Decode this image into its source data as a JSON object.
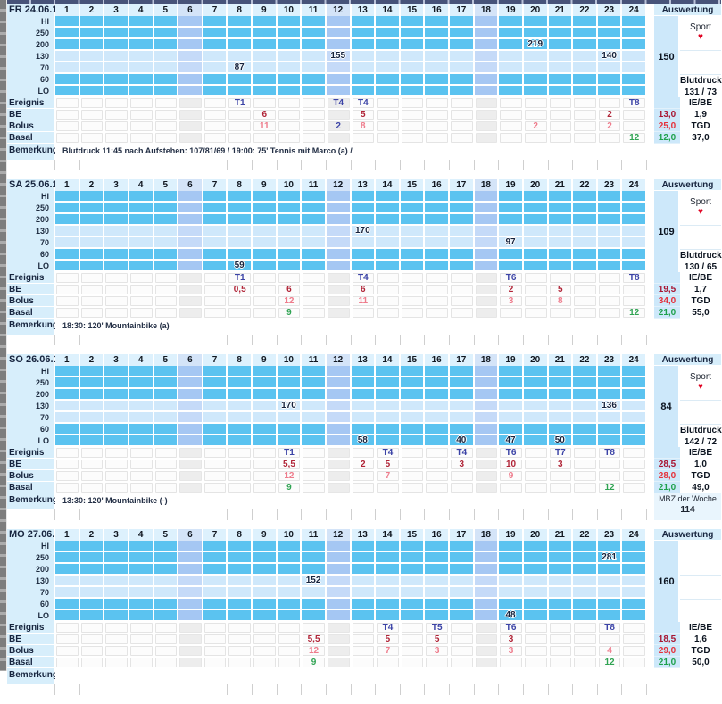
{
  "labels": {
    "aus_header": "Auswertung",
    "sport": "Sport",
    "heart_icon": "♥",
    "blutdruck": "Blutdruck",
    "iebe": "IE/BE",
    "tgd": "TGD",
    "ereignis": "Ereignis",
    "be": "BE",
    "bolus": "Bolus",
    "basal": "Basal",
    "bemerkung": "Bemerkung"
  },
  "hours": [
    "1",
    "2",
    "3",
    "4",
    "5",
    "6",
    "7",
    "8",
    "9",
    "10",
    "11",
    "12",
    "13",
    "14",
    "15",
    "16",
    "17",
    "18",
    "19",
    "20",
    "21",
    "22",
    "23",
    "24"
  ],
  "tinted_hours": [
    6,
    12,
    18
  ],
  "band_labels": [
    "HI",
    "250",
    "200",
    "130",
    "70",
    "60",
    "LO"
  ],
  "dark_bands": [
    "HI",
    "250",
    "200",
    "60",
    "LO"
  ],
  "colors": {
    "band_dark": "#5bc3f0",
    "band_light": "#cfe8fb",
    "lav_dark": "#a5c7f3",
    "lav_light": "#c5daf8",
    "header_bg": "#ddf1fd",
    "header_tint": "#d4e4f8",
    "label_bg": "#d7eefb",
    "totals_bg": "#cde8fa",
    "glucose_text": "#15233e",
    "ereignis": "#3b43a6",
    "be": "#b02437",
    "bolus": "#ee7c8c",
    "basal": "#2fa352",
    "total_be": "#a81531",
    "total_bolus": "#e5303a",
    "total_basal": "#1ea04b",
    "heart": "#e00020"
  },
  "days": [
    {
      "date": "FR 24.06.1",
      "glucose": [
        {
          "col": 8,
          "band": "70",
          "value": "87"
        },
        {
          "col": 12,
          "band": "130",
          "value": "155"
        },
        {
          "col": 20,
          "band": "200",
          "value": "219"
        },
        {
          "col": 23,
          "band": "130",
          "value": "140"
        }
      ],
      "ereignis": [
        {
          "col": 8,
          "value": "T1"
        },
        {
          "col": 12,
          "value": "T4"
        },
        {
          "col": 13,
          "value": "T4"
        },
        {
          "col": 24,
          "value": "T8"
        }
      ],
      "be": [
        {
          "col": 9,
          "value": "6"
        },
        {
          "col": 13,
          "value": "5"
        },
        {
          "col": 23,
          "value": "2"
        }
      ],
      "bolus": [
        {
          "col": 9,
          "value": "11"
        },
        {
          "col": 12,
          "value": "2",
          "blue": true
        },
        {
          "col": 13,
          "value": "8"
        },
        {
          "col": 20,
          "value": "2"
        },
        {
          "col": 23,
          "value": "2"
        }
      ],
      "basal": [
        {
          "col": 24,
          "value": "12"
        }
      ],
      "totals": {
        "be": "13,0",
        "bolus": "25,0",
        "basal": "12,0"
      },
      "auswertung": {
        "avg": "150",
        "sport": true,
        "blutdruck": "131 / 73",
        "iebe": "1,9",
        "tgd": "37,0"
      },
      "bemerkung": "Blutdruck 11:45 nach Aufstehen: 107/81/69 / 19:00: 75' Tennis mit Marco (a) /"
    },
    {
      "date": "SA 25.06.1",
      "glucose": [
        {
          "col": 8,
          "band": "LO",
          "value": "59"
        },
        {
          "col": 13,
          "band": "130",
          "value": "170"
        },
        {
          "col": 19,
          "band": "70",
          "value": "97"
        }
      ],
      "ereignis": [
        {
          "col": 8,
          "value": "T1"
        },
        {
          "col": 13,
          "value": "T4"
        },
        {
          "col": 19,
          "value": "T6"
        },
        {
          "col": 24,
          "value": "T8"
        }
      ],
      "be": [
        {
          "col": 8,
          "value": "0,5"
        },
        {
          "col": 10,
          "value": "6"
        },
        {
          "col": 13,
          "value": "6"
        },
        {
          "col": 19,
          "value": "2"
        },
        {
          "col": 21,
          "value": "5"
        }
      ],
      "bolus": [
        {
          "col": 10,
          "value": "12"
        },
        {
          "col": 13,
          "value": "11"
        },
        {
          "col": 19,
          "value": "3"
        },
        {
          "col": 21,
          "value": "8"
        }
      ],
      "basal": [
        {
          "col": 10,
          "value": "9"
        },
        {
          "col": 24,
          "value": "12"
        }
      ],
      "totals": {
        "be": "19,5",
        "bolus": "34,0",
        "basal": "21,0"
      },
      "auswertung": {
        "avg": "109",
        "sport": true,
        "blutdruck": "130 / 65",
        "iebe": "1,7",
        "tgd": "55,0"
      },
      "bemerkung": "18:30: 120' Mountainbike (a)"
    },
    {
      "date": "SO 26.06.1",
      "glucose": [
        {
          "col": 10,
          "band": "130",
          "value": "170"
        },
        {
          "col": 13,
          "band": "LO",
          "value": "58"
        },
        {
          "col": 17,
          "band": "LO",
          "value": "40"
        },
        {
          "col": 19,
          "band": "LO",
          "value": "47"
        },
        {
          "col": 21,
          "band": "LO",
          "value": "50"
        },
        {
          "col": 23,
          "band": "130",
          "value": "136"
        }
      ],
      "ereignis": [
        {
          "col": 10,
          "value": "T1"
        },
        {
          "col": 14,
          "value": "T4"
        },
        {
          "col": 17,
          "value": "T4"
        },
        {
          "col": 19,
          "value": "T6"
        },
        {
          "col": 21,
          "value": "T7"
        },
        {
          "col": 23,
          "value": "T8"
        }
      ],
      "be": [
        {
          "col": 10,
          "value": "5,5"
        },
        {
          "col": 13,
          "value": "2"
        },
        {
          "col": 14,
          "value": "5"
        },
        {
          "col": 17,
          "value": "3"
        },
        {
          "col": 19,
          "value": "10"
        },
        {
          "col": 21,
          "value": "3"
        }
      ],
      "bolus": [
        {
          "col": 10,
          "value": "12"
        },
        {
          "col": 14,
          "value": "7"
        },
        {
          "col": 19,
          "value": "9"
        }
      ],
      "basal": [
        {
          "col": 10,
          "value": "9"
        },
        {
          "col": 23,
          "value": "12"
        }
      ],
      "totals": {
        "be": "28,5",
        "bolus": "28,0",
        "basal": "21,0"
      },
      "auswertung": {
        "avg": "84",
        "sport": true,
        "blutdruck": "142 / 72",
        "iebe": "1,0",
        "tgd": "49,0"
      },
      "bemerkung": "13:30: 120' Mountainbike (-)",
      "extra": {
        "label": "MBZ der Woche",
        "value": "114"
      }
    },
    {
      "date": "MO 27.06.1",
      "glucose": [
        {
          "col": 11,
          "band": "130",
          "value": "152"
        },
        {
          "col": 19,
          "band": "LO",
          "value": "48"
        },
        {
          "col": 23,
          "band": "250",
          "value": "281"
        }
      ],
      "ereignis": [
        {
          "col": 14,
          "value": "T4"
        },
        {
          "col": 16,
          "value": "T5"
        },
        {
          "col": 19,
          "value": "T6"
        },
        {
          "col": 23,
          "value": "T8"
        }
      ],
      "be": [
        {
          "col": 11,
          "value": "5,5"
        },
        {
          "col": 14,
          "value": "5"
        },
        {
          "col": 16,
          "value": "5"
        },
        {
          "col": 19,
          "value": "3"
        }
      ],
      "bolus": [
        {
          "col": 11,
          "value": "12"
        },
        {
          "col": 14,
          "value": "7"
        },
        {
          "col": 16,
          "value": "3"
        },
        {
          "col": 19,
          "value": "3"
        },
        {
          "col": 23,
          "value": "4"
        }
      ],
      "basal": [
        {
          "col": 11,
          "value": "9"
        },
        {
          "col": 23,
          "value": "12"
        }
      ],
      "totals": {
        "be": "18,5",
        "bolus": "29,0",
        "basal": "21,0"
      },
      "auswertung": {
        "avg": "160",
        "sport": false,
        "blutdruck": null,
        "iebe": "1,6",
        "tgd": "50,0"
      },
      "bemerkung": ""
    }
  ]
}
